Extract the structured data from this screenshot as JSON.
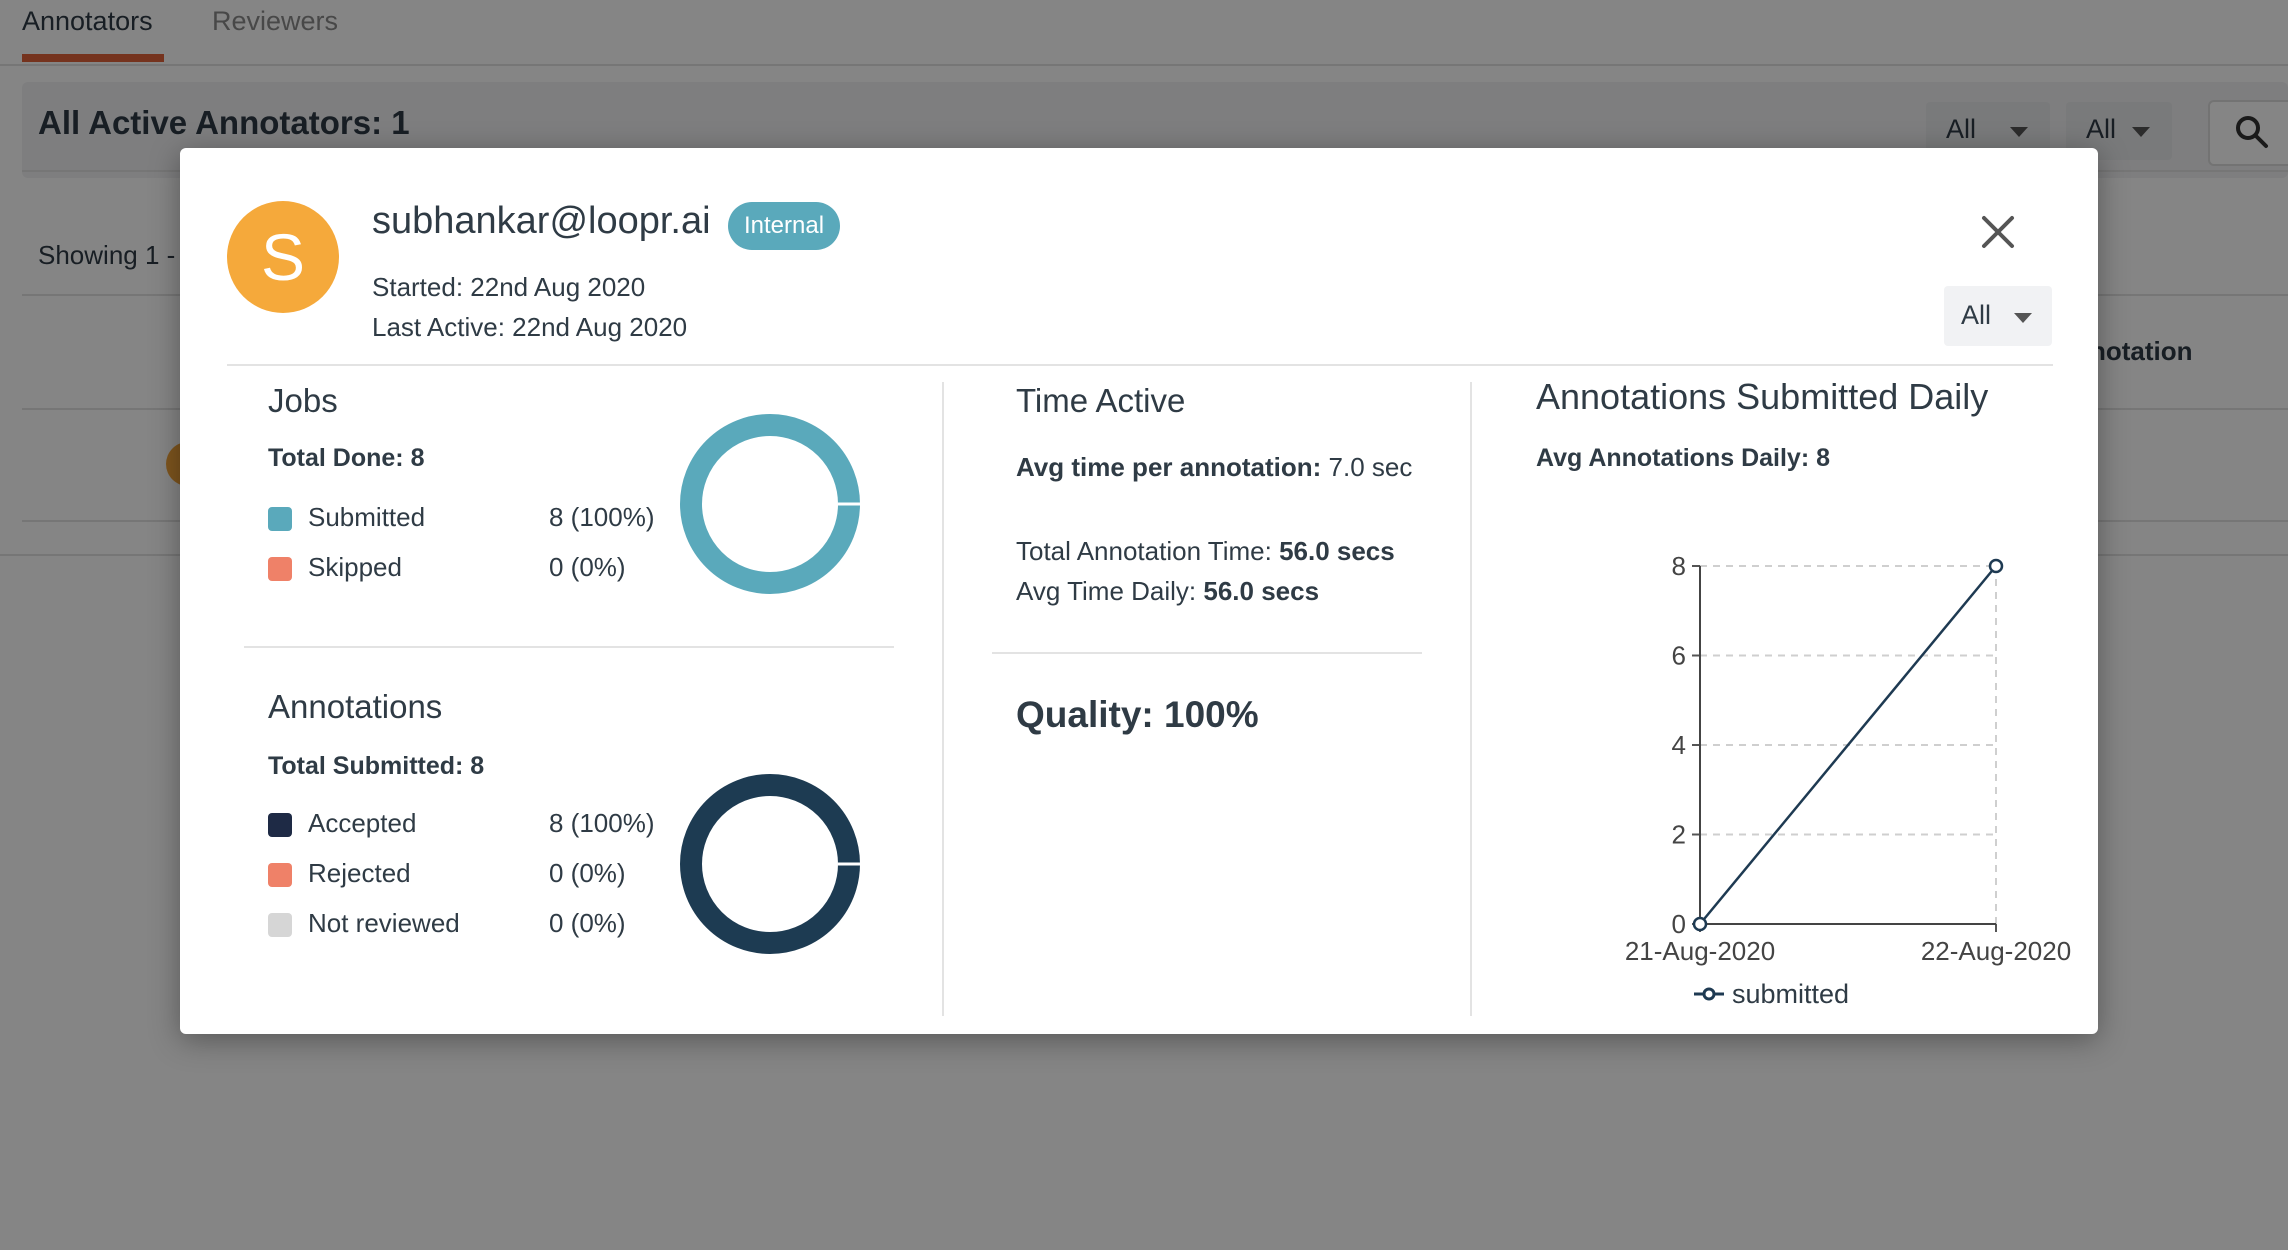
{
  "tabs": [
    {
      "label": "Annotators",
      "active": true
    },
    {
      "label": "Reviewers",
      "active": false
    }
  ],
  "background": {
    "section_title": "All Active Annotators: 1",
    "filter_1": "All",
    "filter_2": "All",
    "showing_text": "Showing 1 -",
    "column_partial": "notation",
    "accent_color": "#e0623a"
  },
  "modal": {
    "avatar_letter": "S",
    "email": "subhankar@loopr.ai",
    "badge": "Internal",
    "started": "Started: 22nd Aug 2020",
    "last_active": "Last Active: 22nd Aug 2020",
    "filter": "All",
    "jobs": {
      "title": "Jobs",
      "total": "Total Done: 8",
      "items": [
        {
          "label": "Submitted",
          "value": "8 (100%)",
          "color": "#5aa9bb",
          "fraction": 1.0
        },
        {
          "label": "Skipped",
          "value": "0 (0%)",
          "color": "#ef8168",
          "fraction": 0.0
        }
      ]
    },
    "annotations": {
      "title": "Annotations",
      "total": "Total Submitted: 8",
      "items": [
        {
          "label": "Accepted",
          "value": "8 (100%)",
          "color": "#1e2a45",
          "fraction": 1.0
        },
        {
          "label": "Rejected",
          "value": "0 (0%)",
          "color": "#ef8168",
          "fraction": 0.0
        },
        {
          "label": "Not reviewed",
          "value": "0 (0%)",
          "color": "#d6d6d6",
          "fraction": 0.0
        }
      ]
    },
    "time_active": {
      "title": "Time Active",
      "avg_label": "Avg time per annotation:",
      "avg_value": "7.0 sec",
      "total_label": "Total Annotation Time:",
      "total_value": "56.0 secs",
      "daily_label": "Avg Time Daily:",
      "daily_value": "56.0 secs",
      "quality": "Quality: 100%"
    },
    "daily": {
      "title": "Annotations Submitted Daily",
      "avg": "Avg Annotations Daily: 8"
    }
  },
  "chart_data": {
    "type": "line",
    "categories": [
      "21-Aug-2020",
      "22-Aug-2020"
    ],
    "series": [
      {
        "name": "submitted",
        "values": [
          0,
          8
        ],
        "color": "#1e3a52"
      }
    ],
    "ylim": [
      0,
      8
    ],
    "yticks": [
      "0",
      "2",
      "4",
      "6",
      "8"
    ],
    "grid": true,
    "legend": "bottom"
  },
  "icons": {
    "close": "close-icon",
    "caret": "caret-down-icon",
    "search": "search-icon"
  }
}
